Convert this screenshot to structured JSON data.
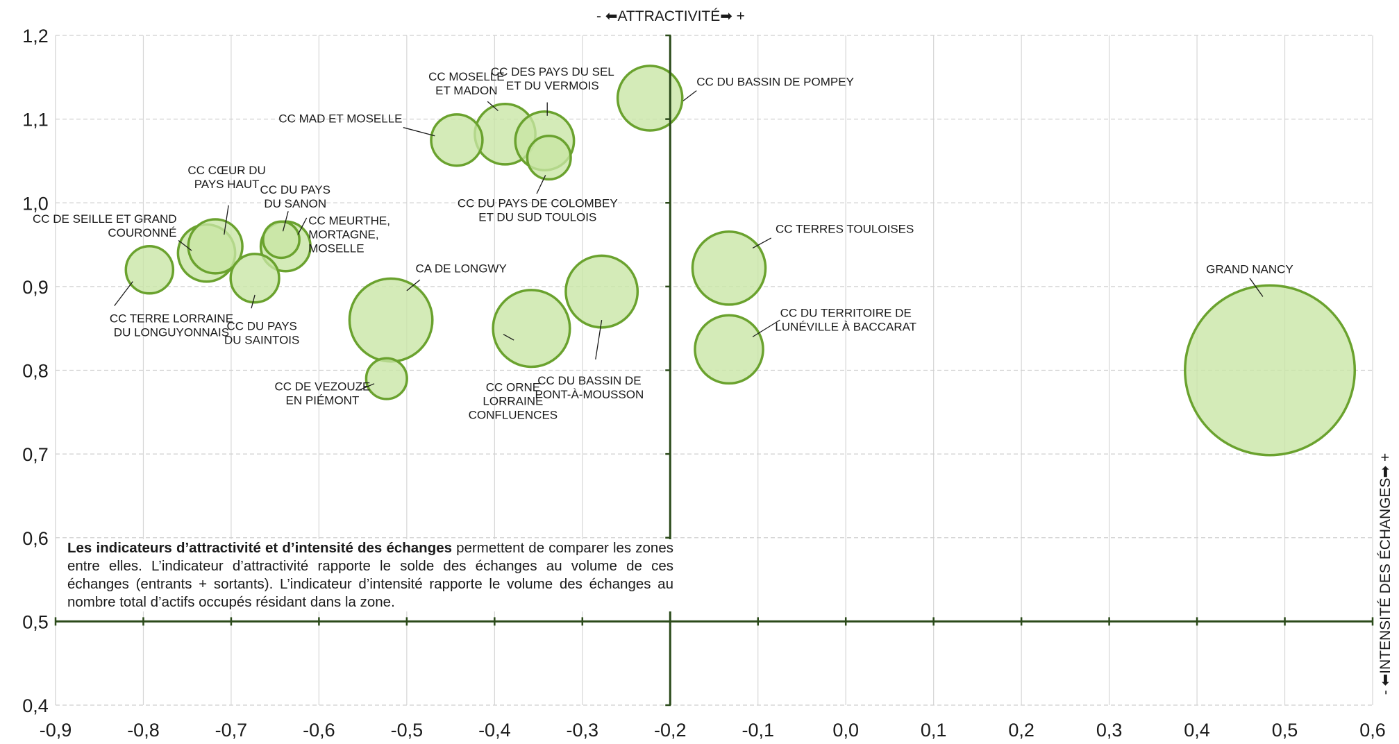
{
  "chart_data": {
    "type": "scatter",
    "title": "",
    "xlabel": "- ⬅ATTRACTIVITÉ➡ +",
    "ylabel": "- ⬅INTENSITÉ DES ÉCHANGES➡ +",
    "xlim": [
      -0.9,
      0.6
    ],
    "ylim": [
      0.4,
      1.2
    ],
    "x_ticks": [
      "-0,9",
      "-0,8",
      "-0,7",
      "-0,6",
      "-0,5",
      "-0,4",
      "-0,3",
      "-0,2",
      "-0,1",
      "0,0",
      "0,1",
      "0,2",
      "0,3",
      "0,4",
      "0,5",
      "0,6"
    ],
    "y_ticks": [
      "0,4",
      "0,5",
      "0,6",
      "0,7",
      "0,8",
      "0,9",
      "1,0",
      "1,1",
      "1,2"
    ],
    "grid": true,
    "bubble_color": "#c8e6a4",
    "bubble_stroke": "#6aa22e",
    "axis_color": "#2b4a1a",
    "points": [
      {
        "name": "CC TERRE LORRAINE DU LONGUYONNAIS",
        "x": -0.793,
        "y": 0.92,
        "size": 0.39
      },
      {
        "name": "CC DE SEILLE ET GRAND COURONNÉ",
        "x": -0.728,
        "y": 0.94,
        "size": 0.57
      },
      {
        "name": "CC CŒUR DU PAYS HAUT",
        "x": -0.718,
        "y": 0.948,
        "size": 0.51
      },
      {
        "name": "CC DU PAYS DU SAINTOIS",
        "x": -0.673,
        "y": 0.91,
        "size": 0.41
      },
      {
        "name": "CC MEURTHE, MORTAGNE, MOSELLE",
        "x": -0.638,
        "y": 0.948,
        "size": 0.43
      },
      {
        "name": "CC DU PAYS DU SANON",
        "x": -0.643,
        "y": 0.956,
        "size": 0.23
      },
      {
        "name": "CA DE LONGWY",
        "x": -0.518,
        "y": 0.86,
        "size": 1.2
      },
      {
        "name": "CC DE VEZOUZE EN PIÉMONT",
        "x": -0.523,
        "y": 0.79,
        "size": 0.29
      },
      {
        "name": "CC MAD ET MOSELLE",
        "x": -0.443,
        "y": 1.075,
        "size": 0.46
      },
      {
        "name": "CC MOSELLE ET MADON",
        "x": -0.388,
        "y": 1.082,
        "size": 0.64
      },
      {
        "name": "CC DES PAYS DU SEL ET DU VERMOIS",
        "x": -0.343,
        "y": 1.074,
        "size": 0.6
      },
      {
        "name": "CC DU PAYS DE COLOMBEY ET DU SUD TOULOIS",
        "x": -0.338,
        "y": 1.054,
        "size": 0.33
      },
      {
        "name": "CC DU BASSIN DE POMPEY",
        "x": -0.223,
        "y": 1.125,
        "size": 0.73
      },
      {
        "name": "CC ORNE LORRAINE CONFLUENCES",
        "x": -0.358,
        "y": 0.85,
        "size": 1.03
      },
      {
        "name": "CC DU BASSIN DE PONT-À-MOUSSON",
        "x": -0.278,
        "y": 0.894,
        "size": 0.9
      },
      {
        "name": "CC TERRES TOULOISES",
        "x": -0.133,
        "y": 0.922,
        "size": 0.93
      },
      {
        "name": "CC DU TERRITOIRE DE LUNÉVILLE À BACCARAT",
        "x": -0.133,
        "y": 0.825,
        "size": 0.81
      },
      {
        "name": "GRAND NANCY",
        "x": 0.483,
        "y": 0.8,
        "size": 5.03
      }
    ],
    "labels": [
      {
        "lines": [
          "CC TERRE LORRAINE",
          "DU LONGUYONNAIS"
        ],
        "x": -0.768,
        "y": 0.857,
        "anchor": "middle",
        "leader": [
          [
            -0.812,
            0.906
          ],
          [
            -0.833,
            0.877
          ]
        ]
      },
      {
        "lines": [
          "CC DE SEILLE ET GRAND",
          "COURONNÉ"
        ],
        "x": -0.762,
        "y": 0.976,
        "anchor": "end",
        "leader": [
          [
            -0.76,
            0.955
          ],
          [
            -0.745,
            0.943
          ]
        ]
      },
      {
        "lines": [
          "CC CŒUR DU",
          "PAYS HAUT"
        ],
        "x": -0.705,
        "y": 1.034,
        "anchor": "middle",
        "leader": [
          [
            -0.703,
            0.997
          ],
          [
            -0.708,
            0.962
          ]
        ]
      },
      {
        "lines": [
          "CC DU PAYS",
          "DU SAINTOIS"
        ],
        "x": -0.665,
        "y": 0.848,
        "anchor": "middle",
        "leader": [
          [
            -0.677,
            0.874
          ],
          [
            -0.673,
            0.89
          ]
        ]
      },
      {
        "lines": [
          "CC MEURTHE,",
          "MORTAGNE,",
          "MOSELLE"
        ],
        "x": -0.612,
        "y": 0.974,
        "anchor": "start",
        "leader": [
          [
            -0.614,
            0.982
          ],
          [
            -0.624,
            0.962
          ]
        ]
      },
      {
        "lines": [
          "CC DU PAYS",
          "DU SANON"
        ],
        "x": -0.627,
        "y": 1.011,
        "anchor": "middle",
        "leader": [
          [
            -0.635,
            0.99
          ],
          [
            -0.641,
            0.966
          ]
        ]
      },
      {
        "lines": [
          "CA DE LONGWY"
        ],
        "x": -0.49,
        "y": 0.917,
        "anchor": "start",
        "leader": [
          [
            -0.485,
            0.908
          ],
          [
            -0.5,
            0.895
          ]
        ]
      },
      {
        "lines": [
          "CC DE VEZOUZE",
          "EN PIÉMONT"
        ],
        "x": -0.596,
        "y": 0.776,
        "anchor": "middle",
        "leader": [
          [
            -0.555,
            0.776
          ],
          [
            -0.537,
            0.784
          ]
        ]
      },
      {
        "lines": [
          "CC MAD ET MOSELLE"
        ],
        "x": -0.505,
        "y": 1.096,
        "anchor": "end",
        "leader": [
          [
            -0.504,
            1.09
          ],
          [
            -0.468,
            1.08
          ]
        ]
      },
      {
        "lines": [
          "CC MOSELLE",
          "ET MADON"
        ],
        "x": -0.432,
        "y": 1.146,
        "anchor": "middle",
        "leader": [
          [
            -0.408,
            1.121
          ],
          [
            -0.396,
            1.11
          ]
        ]
      },
      {
        "lines": [
          "CC DES PAYS DU SEL",
          "ET DU VERMOIS"
        ],
        "x": -0.334,
        "y": 1.152,
        "anchor": "middle",
        "leader": [
          [
            -0.34,
            1.12
          ],
          [
            -0.34,
            1.104
          ]
        ]
      },
      {
        "lines": [
          "CC DU PAYS DE COLOMBEY",
          "ET DU SUD TOULOIS"
        ],
        "x": -0.351,
        "y": 0.995,
        "anchor": "middle",
        "leader": [
          [
            -0.352,
            1.011
          ],
          [
            -0.342,
            1.033
          ]
        ]
      },
      {
        "lines": [
          "CC DU BASSIN DE POMPEY"
        ],
        "x": -0.17,
        "y": 1.14,
        "anchor": "start",
        "leader": [
          [
            -0.17,
            1.134
          ],
          [
            -0.185,
            1.122
          ]
        ]
      },
      {
        "lines": [
          "CC ORNE",
          "LORRAINE",
          "CONFLUENCES"
        ],
        "x": -0.379,
        "y": 0.775,
        "anchor": "middle",
        "leader": [
          [
            -0.378,
            0.836
          ],
          [
            -0.39,
            0.843
          ]
        ]
      },
      {
        "lines": [
          "CC DU BASSIN DE",
          "PONT-À-MOUSSON"
        ],
        "x": -0.292,
        "y": 0.783,
        "anchor": "middle",
        "leader": [
          [
            -0.285,
            0.813
          ],
          [
            -0.278,
            0.86
          ]
        ]
      },
      {
        "lines": [
          "CC TERRES TOULOISES"
        ],
        "x": -0.08,
        "y": 0.964,
        "anchor": "start",
        "leader": [
          [
            -0.085,
            0.958
          ],
          [
            -0.106,
            0.946
          ]
        ]
      },
      {
        "lines": [
          "CC DU TERRITOIRE DE",
          "LUNÉVILLE À BACCARAT"
        ],
        "x": -0.0,
        "y": 0.864,
        "anchor": "middle",
        "leader": [
          [
            -0.075,
            0.86
          ],
          [
            -0.106,
            0.84
          ]
        ]
      },
      {
        "lines": [
          "GRAND NANCY"
        ],
        "x": 0.46,
        "y": 0.916,
        "anchor": "middle",
        "leader": [
          [
            0.46,
            0.91
          ],
          [
            0.475,
            0.888
          ]
        ]
      }
    ]
  },
  "note": {
    "bold": "Les indicateurs d’attractivité et d’intensité des échanges",
    "text": " permettent de comparer les zones entre elles. L’indicateur d’attractivité rapporte le solde des échanges au volume de ces échanges (entrants + sortants). L’indicateur d’intensité rapporte le volume des échanges au nombre total d’actifs occupés résidant dans la zone."
  }
}
